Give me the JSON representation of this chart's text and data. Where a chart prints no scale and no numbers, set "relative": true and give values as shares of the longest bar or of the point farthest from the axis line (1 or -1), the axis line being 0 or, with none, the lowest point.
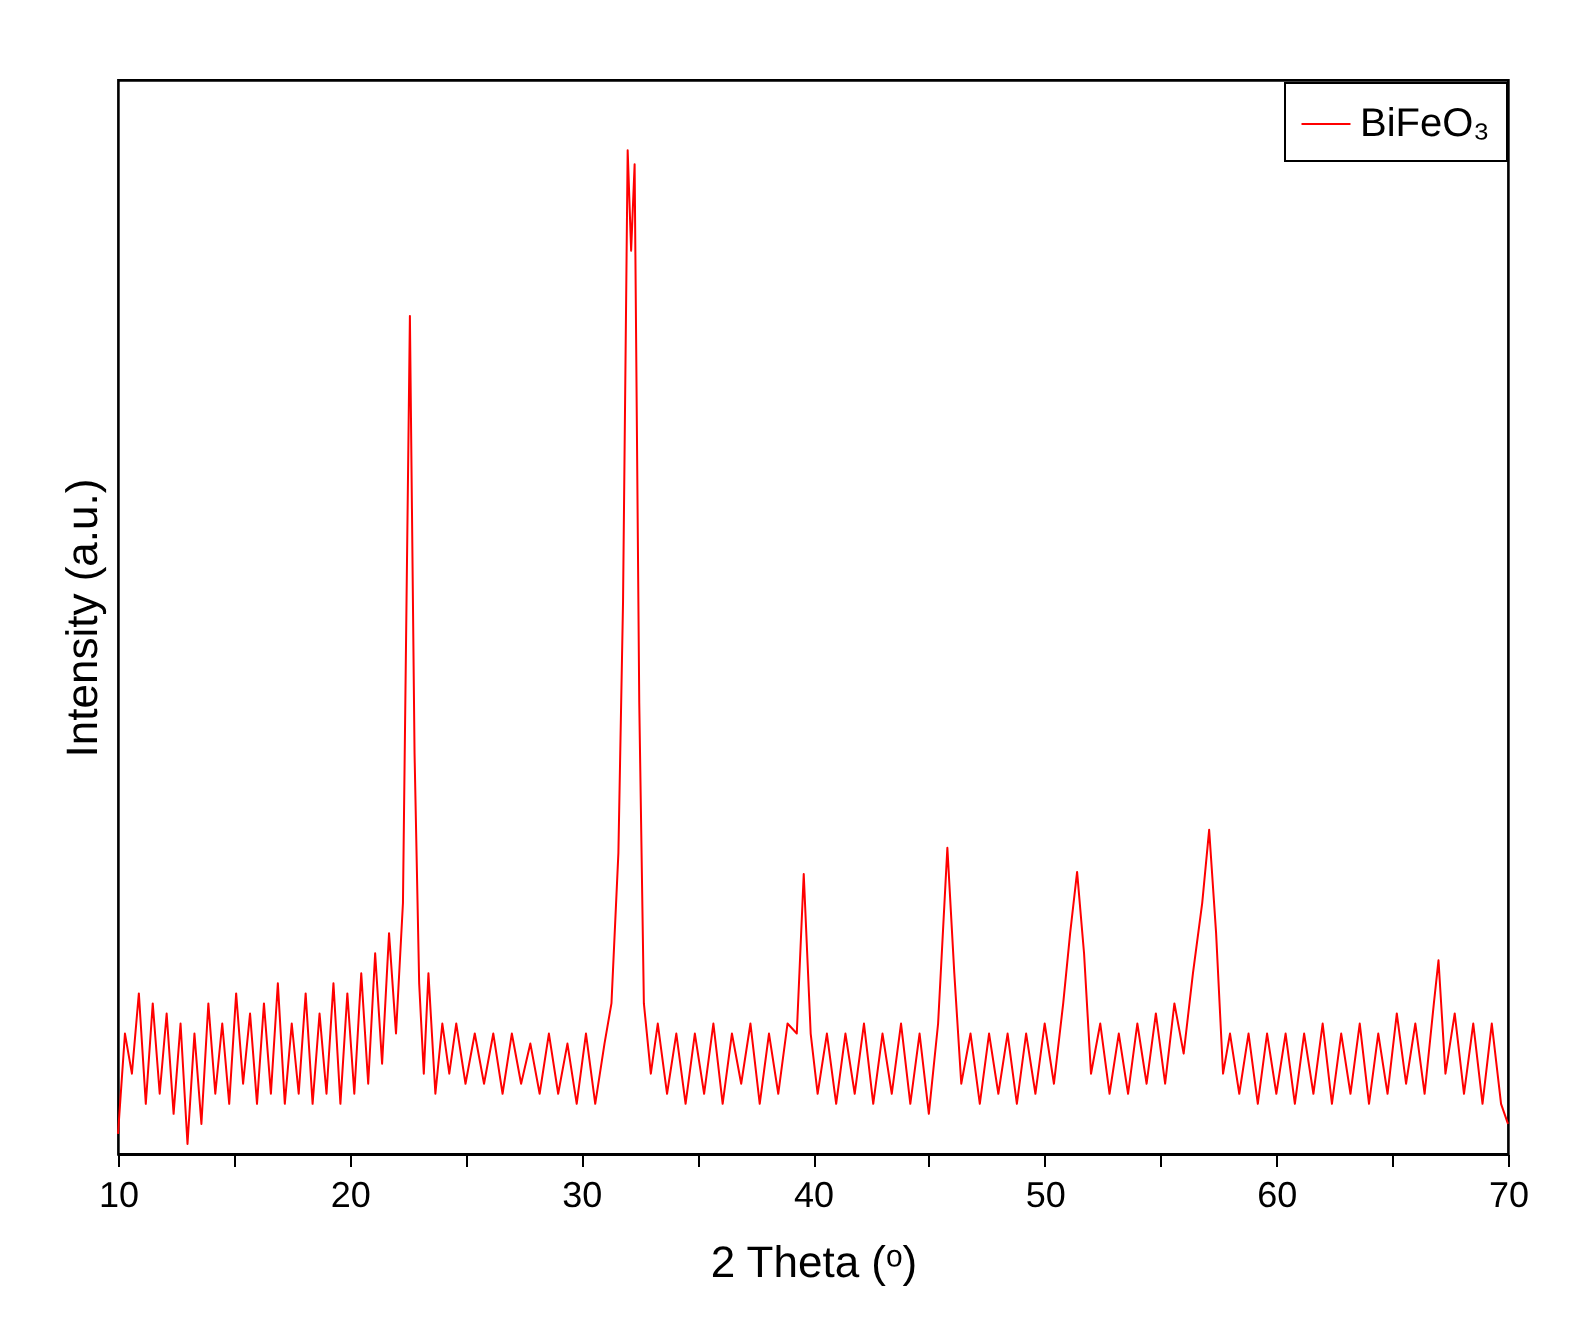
{
  "chart_data": {
    "type": "line",
    "xlabel": "2 Theta (ᵒ)",
    "ylabel": "Intensity (a.u.)",
    "relative": true,
    "legend": "top right",
    "grid": false,
    "line_style": "solid",
    "xlim": [
      10,
      70
    ],
    "xticks": [
      10,
      {
        "value": 15,
        "label": null
      },
      20,
      {
        "value": 25,
        "label": null
      },
      30,
      {
        "value": 35,
        "label": null
      },
      40,
      {
        "value": 45,
        "label": null
      },
      50,
      {
        "value": 55,
        "label": null
      },
      60,
      {
        "value": 65,
        "label": null
      },
      70
    ],
    "x": [
      10.0,
      10.3,
      10.6,
      10.9,
      11.2,
      11.5,
      11.8,
      12.1,
      12.4,
      12.7,
      13.0,
      13.3,
      13.6,
      13.9,
      14.2,
      14.5,
      14.8,
      15.1,
      15.4,
      15.7,
      16.0,
      16.3,
      16.6,
      16.9,
      17.2,
      17.5,
      17.8,
      18.1,
      18.4,
      18.7,
      19.0,
      19.3,
      19.6,
      19.9,
      20.2,
      20.5,
      20.8,
      21.1,
      21.4,
      21.7,
      22.0,
      22.3,
      22.6,
      22.8,
      23.0,
      23.2,
      23.4,
      23.7,
      24.0,
      24.3,
      24.6,
      25.0,
      25.4,
      25.8,
      26.2,
      26.6,
      27.0,
      27.4,
      27.8,
      28.2,
      28.6,
      29.0,
      29.4,
      29.8,
      30.2,
      30.6,
      31.0,
      31.3,
      31.6,
      31.8,
      32.0,
      32.15,
      32.3,
      32.5,
      32.7,
      33.0,
      33.3,
      33.7,
      34.1,
      34.5,
      34.9,
      35.3,
      35.7,
      36.1,
      36.5,
      36.9,
      37.3,
      37.7,
      38.1,
      38.5,
      38.9,
      39.3,
      39.6,
      39.9,
      40.2,
      40.6,
      41.0,
      41.4,
      41.8,
      42.2,
      42.6,
      43.0,
      43.4,
      43.8,
      44.2,
      44.6,
      45.0,
      45.4,
      45.8,
      46.1,
      46.4,
      46.8,
      47.2,
      47.6,
      48.0,
      48.4,
      48.8,
      49.2,
      49.6,
      50.0,
      50.4,
      50.8,
      51.1,
      51.4,
      51.7,
      52.0,
      52.4,
      52.8,
      53.2,
      53.6,
      54.0,
      54.4,
      54.8,
      55.2,
      55.6,
      56.0,
      56.4,
      56.8,
      57.1,
      57.4,
      57.7,
      58.0,
      58.4,
      58.8,
      59.2,
      59.6,
      60.0,
      60.4,
      60.8,
      61.2,
      61.6,
      62.0,
      62.4,
      62.8,
      63.2,
      63.6,
      64.0,
      64.4,
      64.8,
      65.2,
      65.6,
      66.0,
      66.4,
      66.8,
      67.0,
      67.3,
      67.7,
      68.1,
      68.5,
      68.9,
      69.3,
      69.7,
      70.0
    ],
    "series": [
      {
        "name": "BiFeO₃",
        "color": "#ff0000",
        "values": [
          0.02,
          0.12,
          0.08,
          0.16,
          0.05,
          0.15,
          0.06,
          0.14,
          0.04,
          0.13,
          0.01,
          0.12,
          0.03,
          0.15,
          0.06,
          0.13,
          0.05,
          0.16,
          0.07,
          0.14,
          0.05,
          0.15,
          0.06,
          0.17,
          0.05,
          0.13,
          0.06,
          0.16,
          0.05,
          0.14,
          0.06,
          0.17,
          0.05,
          0.16,
          0.06,
          0.18,
          0.07,
          0.2,
          0.09,
          0.22,
          0.12,
          0.25,
          0.835,
          0.4,
          0.17,
          0.08,
          0.18,
          0.06,
          0.13,
          0.08,
          0.13,
          0.07,
          0.12,
          0.07,
          0.12,
          0.06,
          0.12,
          0.07,
          0.11,
          0.06,
          0.12,
          0.06,
          0.11,
          0.05,
          0.12,
          0.05,
          0.11,
          0.15,
          0.3,
          0.55,
          1.0,
          0.9,
          0.986,
          0.45,
          0.15,
          0.08,
          0.13,
          0.06,
          0.12,
          0.05,
          0.12,
          0.06,
          0.13,
          0.05,
          0.12,
          0.07,
          0.13,
          0.05,
          0.12,
          0.06,
          0.13,
          0.12,
          0.279,
          0.12,
          0.06,
          0.12,
          0.05,
          0.12,
          0.06,
          0.13,
          0.05,
          0.12,
          0.06,
          0.13,
          0.05,
          0.12,
          0.04,
          0.13,
          0.305,
          0.18,
          0.07,
          0.12,
          0.05,
          0.12,
          0.06,
          0.12,
          0.05,
          0.12,
          0.06,
          0.13,
          0.07,
          0.15,
          0.22,
          0.281,
          0.2,
          0.08,
          0.13,
          0.06,
          0.12,
          0.06,
          0.13,
          0.07,
          0.14,
          0.07,
          0.15,
          0.1,
          0.18,
          0.25,
          0.323,
          0.22,
          0.08,
          0.12,
          0.06,
          0.12,
          0.05,
          0.12,
          0.06,
          0.12,
          0.05,
          0.12,
          0.06,
          0.13,
          0.05,
          0.12,
          0.06,
          0.13,
          0.05,
          0.12,
          0.06,
          0.14,
          0.07,
          0.13,
          0.06,
          0.15,
          0.193,
          0.08,
          0.14,
          0.06,
          0.13,
          0.05,
          0.13,
          0.05,
          0.03
        ]
      }
    ]
  }
}
